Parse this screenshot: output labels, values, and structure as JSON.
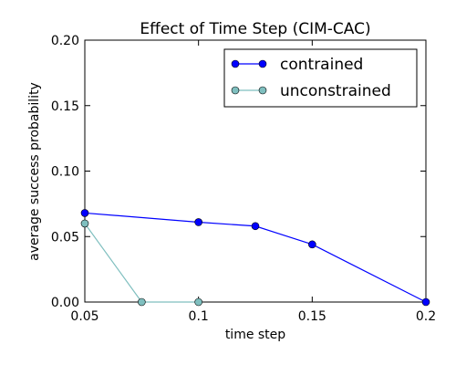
{
  "chart_data": {
    "type": "line",
    "title": "Effect of Time Step (CIM-CAC)",
    "xlabel": "time step",
    "ylabel": "average success probability",
    "xlim": [
      0.05,
      0.2
    ],
    "ylim": [
      0.0,
      0.2
    ],
    "x_ticks": [
      "0.05",
      "0.1",
      "0.15",
      "0.2"
    ],
    "x_tick_values": [
      0.05,
      0.1,
      0.15,
      0.2
    ],
    "y_ticks": [
      "0.00",
      "0.05",
      "0.10",
      "0.15",
      "0.20"
    ],
    "y_tick_values": [
      0.0,
      0.05,
      0.1,
      0.15,
      0.2
    ],
    "grid": false,
    "legend_position": "top-right",
    "series": [
      {
        "name": "contrained",
        "color": "#0000ff",
        "marker": "circle",
        "points": [
          [
            0.05,
            0.068
          ],
          [
            0.1,
            0.061
          ],
          [
            0.125,
            0.058
          ],
          [
            0.15,
            0.044
          ],
          [
            0.2,
            0.0
          ]
        ]
      },
      {
        "name": "unconstrained",
        "color": "#7fbfbf",
        "marker": "circle",
        "points": [
          [
            0.05,
            0.06
          ],
          [
            0.075,
            0.0
          ],
          [
            0.1,
            0.0
          ]
        ]
      }
    ]
  }
}
